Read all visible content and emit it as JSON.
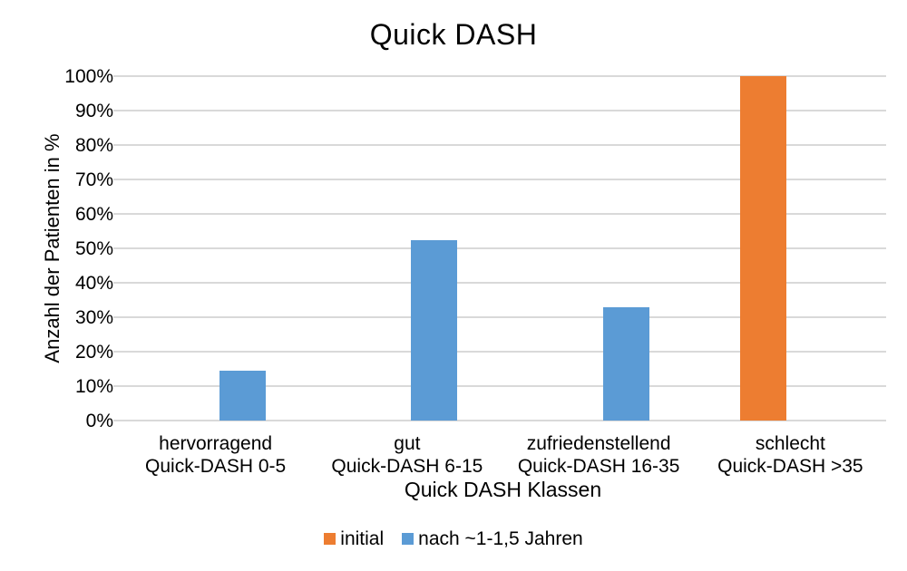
{
  "chart_data": {
    "type": "bar",
    "title": "Quick DASH",
    "xlabel": "Quick DASH Klassen",
    "ylabel": "Anzahl der Patienten in %",
    "ylim": [
      0,
      100
    ],
    "ytick_step": 10,
    "ytick_labels": [
      "0%",
      "10%",
      "20%",
      "30%",
      "40%",
      "50%",
      "60%",
      "70%",
      "80%",
      "90%",
      "100%"
    ],
    "grid": true,
    "legend_position": "bottom",
    "categories": [
      {
        "line1": "hervorragend",
        "line2": "Quick-DASH 0-5"
      },
      {
        "line1": "gut",
        "line2": "Quick-DASH 6-15"
      },
      {
        "line1": "zufriedenstellend",
        "line2": "Quick-DASH 16-35"
      },
      {
        "line1": "schlecht",
        "line2": "Quick-DASH >35"
      }
    ],
    "series": [
      {
        "name": "initial",
        "color": "#ED7D31",
        "values": [
          0,
          0,
          0,
          100
        ]
      },
      {
        "name": "nach ~1-1,5 Jahren",
        "color": "#5B9BD5",
        "values": [
          14.5,
          52.5,
          33,
          0
        ]
      }
    ],
    "colors": {
      "gridline": "#d9d9d9",
      "axis_line": "#d9d9d9",
      "text": "#000000",
      "background": "#ffffff"
    }
  }
}
